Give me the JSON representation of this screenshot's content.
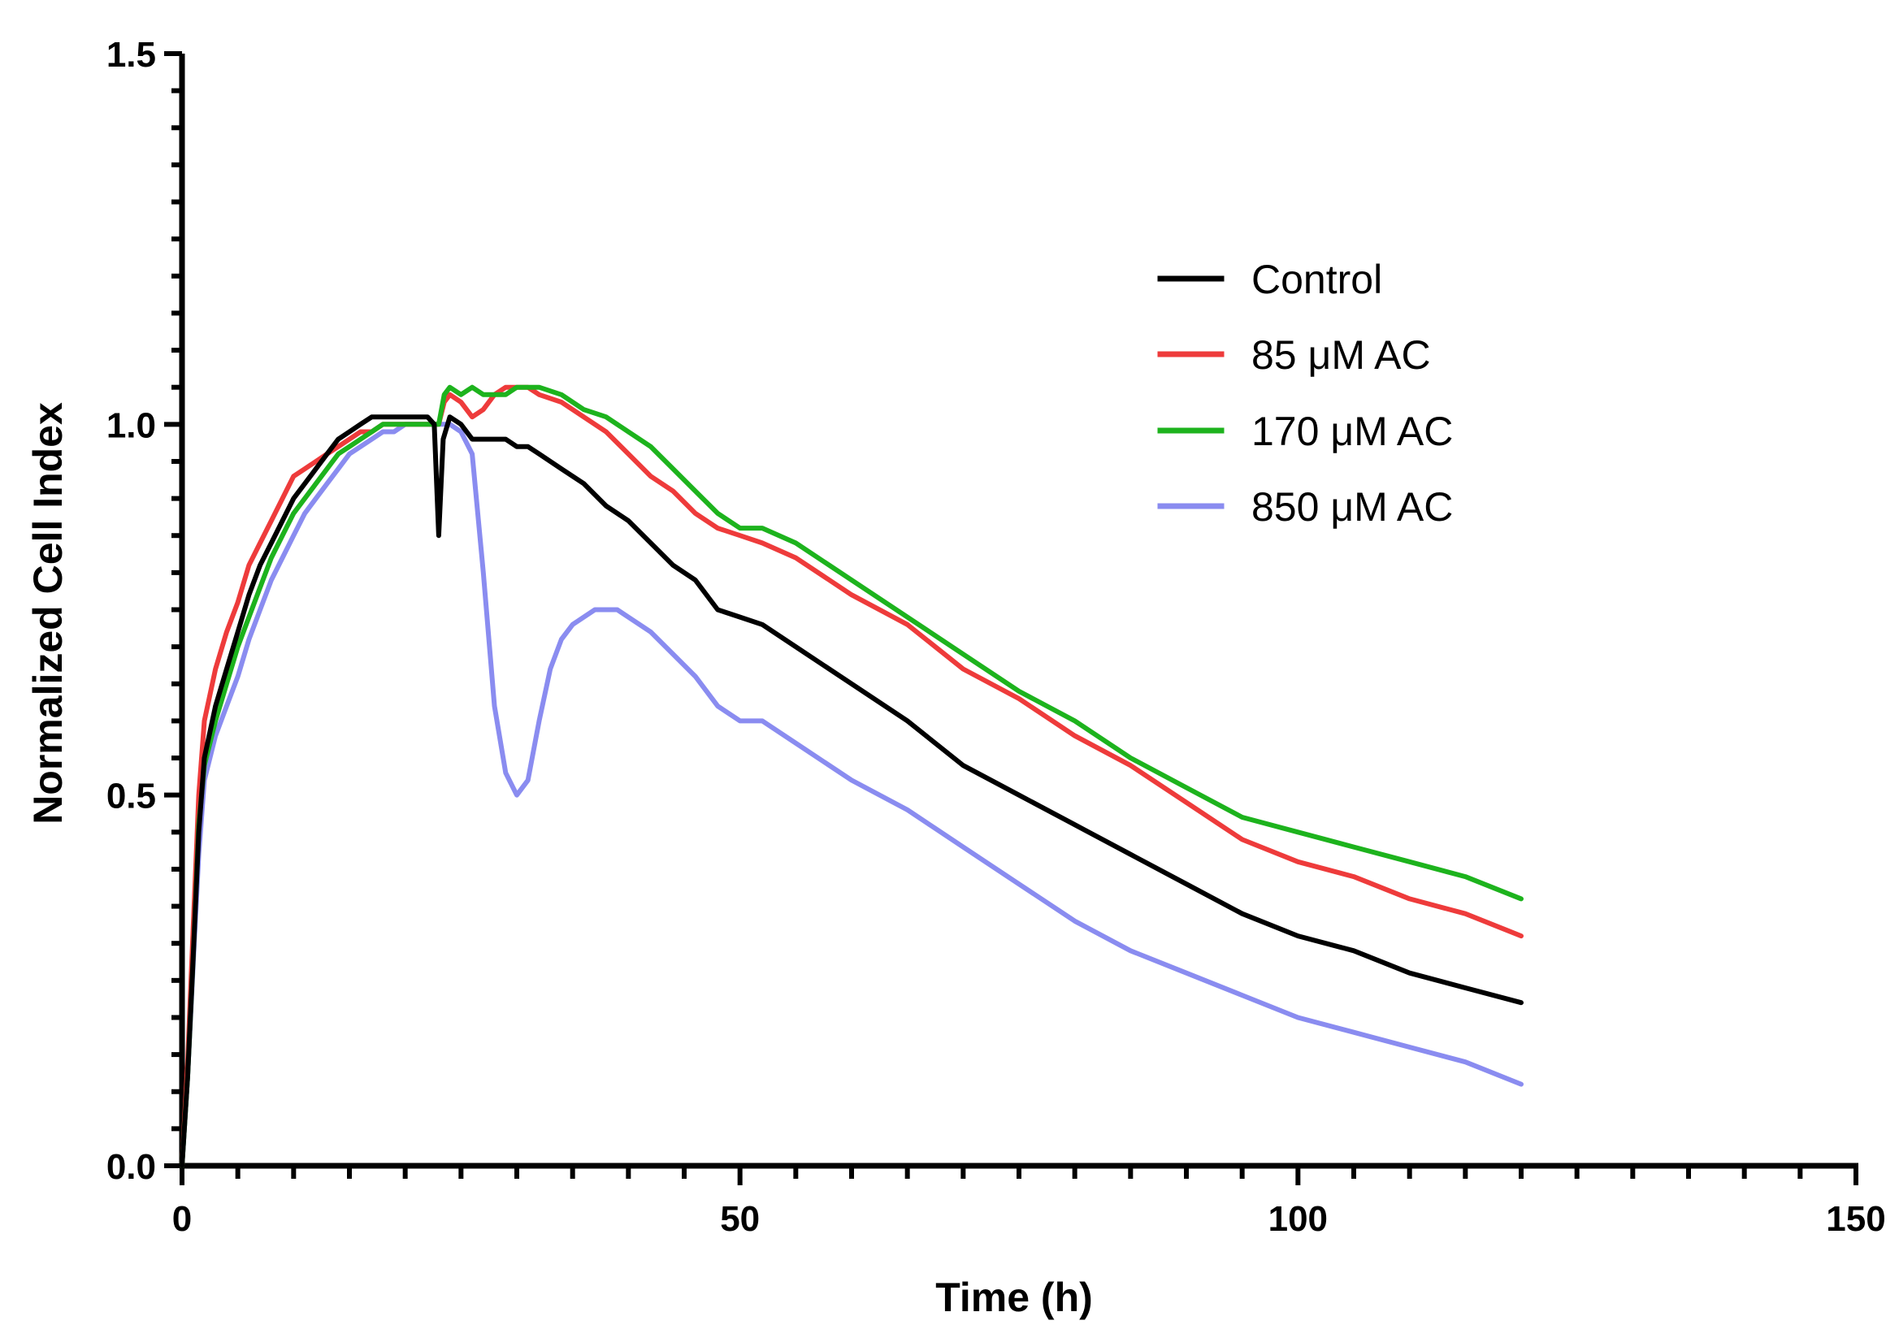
{
  "chart_data": {
    "type": "line",
    "title": "",
    "xlabel": "Time (h)",
    "ylabel": "Normalized Cell Index",
    "xlim": [
      0,
      150
    ],
    "ylim": [
      0,
      1.5
    ],
    "xticks": [
      0,
      50,
      100,
      150
    ],
    "xtick_labels": [
      "0",
      "50",
      "100",
      "150"
    ],
    "yticks": [
      0.0,
      0.5,
      1.0,
      1.5
    ],
    "ytick_labels": [
      "0.0",
      "0.5",
      "1.0",
      "1.5"
    ],
    "legend_position": "top-right",
    "series": [
      {
        "name": "Control",
        "color": "#000000",
        "points": [
          [
            0,
            0
          ],
          [
            0.5,
            0.12
          ],
          [
            1,
            0.28
          ],
          [
            1.5,
            0.45
          ],
          [
            2,
            0.55
          ],
          [
            3,
            0.62
          ],
          [
            4,
            0.67
          ],
          [
            5,
            0.72
          ],
          [
            6,
            0.77
          ],
          [
            7,
            0.81
          ],
          [
            8,
            0.84
          ],
          [
            9,
            0.87
          ],
          [
            10,
            0.9
          ],
          [
            11,
            0.92
          ],
          [
            12,
            0.94
          ],
          [
            13,
            0.96
          ],
          [
            14,
            0.98
          ],
          [
            15,
            0.99
          ],
          [
            16,
            1.0
          ],
          [
            17,
            1.01
          ],
          [
            18,
            1.01
          ],
          [
            19,
            1.01
          ],
          [
            20,
            1.01
          ],
          [
            21,
            1.01
          ],
          [
            22,
            1.01
          ],
          [
            22.6,
            1.0
          ],
          [
            23,
            0.85
          ],
          [
            23.4,
            0.98
          ],
          [
            24,
            1.01
          ],
          [
            25,
            1.0
          ],
          [
            26,
            0.98
          ],
          [
            27,
            0.98
          ],
          [
            28,
            0.98
          ],
          [
            29,
            0.98
          ],
          [
            30,
            0.97
          ],
          [
            31,
            0.97
          ],
          [
            32,
            0.96
          ],
          [
            34,
            0.94
          ],
          [
            36,
            0.92
          ],
          [
            38,
            0.89
          ],
          [
            40,
            0.87
          ],
          [
            42,
            0.84
          ],
          [
            44,
            0.81
          ],
          [
            46,
            0.79
          ],
          [
            48,
            0.75
          ],
          [
            50,
            0.74
          ],
          [
            52,
            0.73
          ],
          [
            55,
            0.7
          ],
          [
            60,
            0.65
          ],
          [
            65,
            0.6
          ],
          [
            70,
            0.54
          ],
          [
            75,
            0.5
          ],
          [
            80,
            0.46
          ],
          [
            85,
            0.42
          ],
          [
            90,
            0.38
          ],
          [
            95,
            0.34
          ],
          [
            100,
            0.31
          ],
          [
            105,
            0.29
          ],
          [
            110,
            0.26
          ],
          [
            115,
            0.24
          ],
          [
            120,
            0.22
          ]
        ]
      },
      {
        "name": "85 μM AC",
        "color": "#EE3B3B",
        "points": [
          [
            0,
            0
          ],
          [
            0.5,
            0.14
          ],
          [
            1,
            0.32
          ],
          [
            1.5,
            0.5
          ],
          [
            2,
            0.6
          ],
          [
            3,
            0.67
          ],
          [
            4,
            0.72
          ],
          [
            5,
            0.76
          ],
          [
            6,
            0.81
          ],
          [
            7,
            0.84
          ],
          [
            8,
            0.87
          ],
          [
            9,
            0.9
          ],
          [
            10,
            0.93
          ],
          [
            11,
            0.94
          ],
          [
            12,
            0.95
          ],
          [
            13,
            0.96
          ],
          [
            14,
            0.97
          ],
          [
            15,
            0.98
          ],
          [
            16,
            0.99
          ],
          [
            17,
            0.99
          ],
          [
            18,
            1.0
          ],
          [
            19,
            1.0
          ],
          [
            20,
            1.0
          ],
          [
            21,
            1.0
          ],
          [
            22,
            1.0
          ],
          [
            23,
            1.0
          ],
          [
            23.5,
            1.03
          ],
          [
            24,
            1.04
          ],
          [
            25,
            1.03
          ],
          [
            26,
            1.01
          ],
          [
            27,
            1.02
          ],
          [
            28,
            1.04
          ],
          [
            29,
            1.05
          ],
          [
            30,
            1.05
          ],
          [
            31,
            1.05
          ],
          [
            32,
            1.04
          ],
          [
            34,
            1.03
          ],
          [
            36,
            1.01
          ],
          [
            38,
            0.99
          ],
          [
            40,
            0.96
          ],
          [
            42,
            0.93
          ],
          [
            44,
            0.91
          ],
          [
            46,
            0.88
          ],
          [
            48,
            0.86
          ],
          [
            50,
            0.85
          ],
          [
            52,
            0.84
          ],
          [
            55,
            0.82
          ],
          [
            60,
            0.77
          ],
          [
            65,
            0.73
          ],
          [
            70,
            0.67
          ],
          [
            75,
            0.63
          ],
          [
            80,
            0.58
          ],
          [
            85,
            0.54
          ],
          [
            90,
            0.49
          ],
          [
            95,
            0.44
          ],
          [
            100,
            0.41
          ],
          [
            105,
            0.39
          ],
          [
            110,
            0.36
          ],
          [
            115,
            0.34
          ],
          [
            120,
            0.31
          ]
        ]
      },
      {
        "name": "170 μM AC",
        "color": "#1DB31D",
        "points": [
          [
            0,
            0
          ],
          [
            0.5,
            0.12
          ],
          [
            1,
            0.28
          ],
          [
            1.5,
            0.46
          ],
          [
            2,
            0.54
          ],
          [
            3,
            0.6
          ],
          [
            4,
            0.65
          ],
          [
            5,
            0.7
          ],
          [
            6,
            0.74
          ],
          [
            7,
            0.78
          ],
          [
            8,
            0.82
          ],
          [
            9,
            0.85
          ],
          [
            10,
            0.88
          ],
          [
            11,
            0.9
          ],
          [
            12,
            0.92
          ],
          [
            13,
            0.94
          ],
          [
            14,
            0.96
          ],
          [
            15,
            0.97
          ],
          [
            16,
            0.98
          ],
          [
            17,
            0.99
          ],
          [
            18,
            1.0
          ],
          [
            19,
            1.0
          ],
          [
            20,
            1.0
          ],
          [
            21,
            1.0
          ],
          [
            22,
            1.0
          ],
          [
            23,
            1.0
          ],
          [
            23.5,
            1.04
          ],
          [
            24,
            1.05
          ],
          [
            25,
            1.04
          ],
          [
            26,
            1.05
          ],
          [
            27,
            1.04
          ],
          [
            28,
            1.04
          ],
          [
            29,
            1.04
          ],
          [
            30,
            1.05
          ],
          [
            31,
            1.05
          ],
          [
            32,
            1.05
          ],
          [
            34,
            1.04
          ],
          [
            36,
            1.02
          ],
          [
            38,
            1.01
          ],
          [
            40,
            0.99
          ],
          [
            42,
            0.97
          ],
          [
            44,
            0.94
          ],
          [
            46,
            0.91
          ],
          [
            48,
            0.88
          ],
          [
            50,
            0.86
          ],
          [
            52,
            0.86
          ],
          [
            55,
            0.84
          ],
          [
            60,
            0.79
          ],
          [
            65,
            0.74
          ],
          [
            70,
            0.69
          ],
          [
            75,
            0.64
          ],
          [
            80,
            0.6
          ],
          [
            85,
            0.55
          ],
          [
            90,
            0.51
          ],
          [
            95,
            0.47
          ],
          [
            100,
            0.45
          ],
          [
            105,
            0.43
          ],
          [
            110,
            0.41
          ],
          [
            115,
            0.39
          ],
          [
            120,
            0.36
          ]
        ]
      },
      {
        "name": "850 μM AC",
        "color": "#8A8CF0",
        "points": [
          [
            0,
            0
          ],
          [
            0.5,
            0.12
          ],
          [
            1,
            0.27
          ],
          [
            1.5,
            0.42
          ],
          [
            2,
            0.52
          ],
          [
            3,
            0.58
          ],
          [
            4,
            0.62
          ],
          [
            5,
            0.66
          ],
          [
            6,
            0.71
          ],
          [
            7,
            0.75
          ],
          [
            8,
            0.79
          ],
          [
            9,
            0.82
          ],
          [
            10,
            0.85
          ],
          [
            11,
            0.88
          ],
          [
            12,
            0.9
          ],
          [
            13,
            0.92
          ],
          [
            14,
            0.94
          ],
          [
            15,
            0.96
          ],
          [
            16,
            0.97
          ],
          [
            17,
            0.98
          ],
          [
            18,
            0.99
          ],
          [
            19,
            0.99
          ],
          [
            20,
            1.0
          ],
          [
            21,
            1.0
          ],
          [
            22,
            1.0
          ],
          [
            23,
            1.0
          ],
          [
            24,
            1.0
          ],
          [
            25,
            0.99
          ],
          [
            26,
            0.96
          ],
          [
            27,
            0.8
          ],
          [
            28,
            0.62
          ],
          [
            29,
            0.53
          ],
          [
            30,
            0.5
          ],
          [
            31,
            0.52
          ],
          [
            32,
            0.6
          ],
          [
            33,
            0.67
          ],
          [
            34,
            0.71
          ],
          [
            35,
            0.73
          ],
          [
            36,
            0.74
          ],
          [
            37,
            0.75
          ],
          [
            38,
            0.75
          ],
          [
            39,
            0.75
          ],
          [
            40,
            0.74
          ],
          [
            42,
            0.72
          ],
          [
            44,
            0.69
          ],
          [
            46,
            0.66
          ],
          [
            48,
            0.62
          ],
          [
            50,
            0.6
          ],
          [
            52,
            0.6
          ],
          [
            55,
            0.57
          ],
          [
            60,
            0.52
          ],
          [
            65,
            0.48
          ],
          [
            70,
            0.43
          ],
          [
            75,
            0.38
          ],
          [
            80,
            0.33
          ],
          [
            85,
            0.29
          ],
          [
            90,
            0.26
          ],
          [
            95,
            0.23
          ],
          [
            100,
            0.2
          ],
          [
            105,
            0.18
          ],
          [
            110,
            0.16
          ],
          [
            115,
            0.14
          ],
          [
            120,
            0.11
          ]
        ]
      }
    ]
  }
}
